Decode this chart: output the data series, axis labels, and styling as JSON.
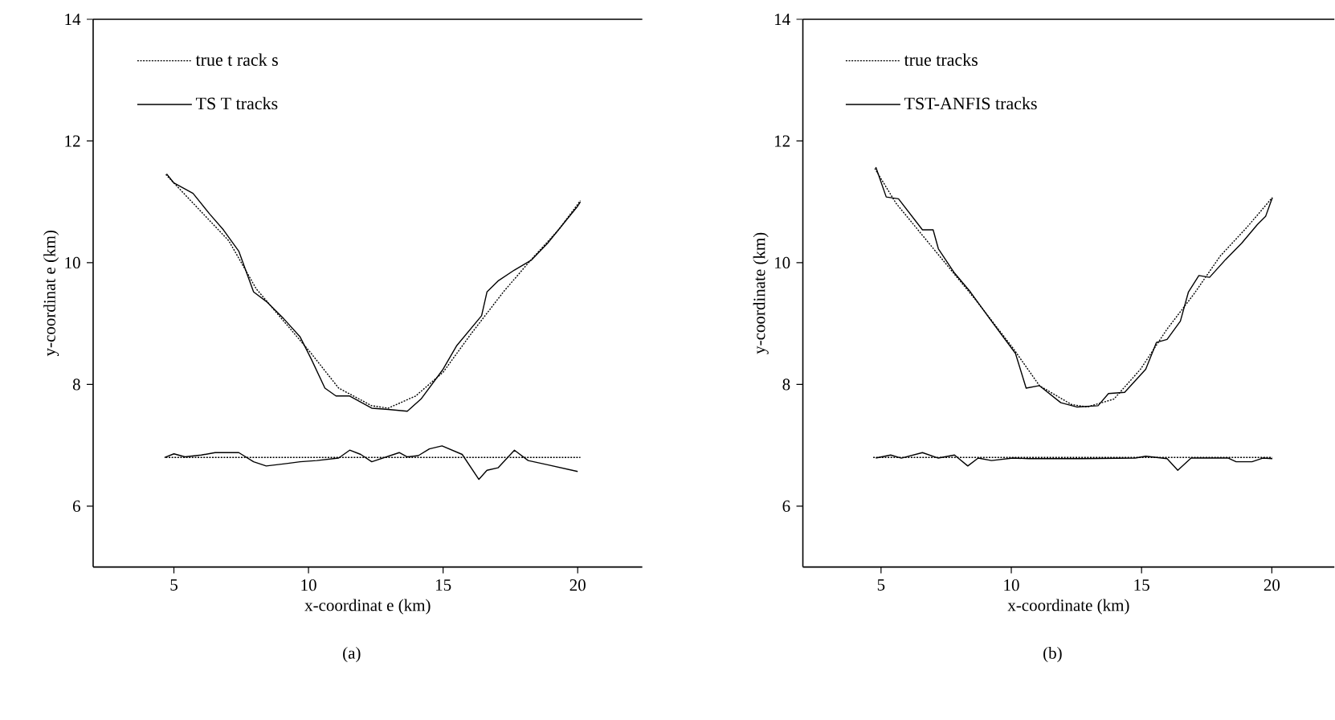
{
  "chart_data": [
    {
      "type": "line",
      "xlabel": "x-coordinat e (km)",
      "ylabel": "y-coordinat e (km)",
      "xlim": [
        2,
        22.4
      ],
      "ylim": [
        5,
        14
      ],
      "xticks": [
        5,
        10,
        15,
        20
      ],
      "yticks": [
        6,
        8,
        10,
        12,
        14
      ],
      "grid": false,
      "legend": "top left",
      "annotations": [
        "(a)"
      ],
      "series": [
        {
          "name": "true t rack s",
          "color": "#000000",
          "line_style": "dotted",
          "x": [
            4.7,
            7.04,
            8.06,
            9.08,
            10.1,
            11.12,
            12.35,
            12.96,
            13.98,
            15,
            16.02,
            17.24,
            18.27,
            19.29,
            20.1
          ],
          "values": [
            11.45,
            10.36,
            9.57,
            9.04,
            8.51,
            7.94,
            7.65,
            7.61,
            7.81,
            8.2,
            8.82,
            9.52,
            10.05,
            10.54,
            11.02
          ]
        },
        {
          "name": "TS T tracks",
          "color": "#000000",
          "line_style": "solid",
          "x": [
            4.73,
            5,
            5.71,
            6.33,
            6.84,
            7.41,
            7.96,
            8.47,
            9.08,
            9.69,
            10.1,
            10.61,
            11.02,
            11.53,
            12.35,
            12.96,
            13.67,
            14.18,
            15,
            15.51,
            16.43,
            16.63,
            17.04,
            17.65,
            18.27,
            18.88,
            20,
            20.1
          ],
          "values": [
            11.46,
            11.31,
            11.14,
            10.8,
            10.54,
            10.19,
            9.52,
            9.35,
            9.08,
            8.78,
            8.42,
            7.94,
            7.81,
            7.81,
            7.61,
            7.59,
            7.56,
            7.76,
            8.25,
            8.64,
            9.13,
            9.52,
            9.7,
            9.88,
            10.04,
            10.32,
            10.93,
            11.0
          ]
        },
        {
          "color": "#000000",
          "line_style": "dotted",
          "x": [
            4.7,
            20.1
          ],
          "values": [
            6.8,
            6.8
          ]
        },
        {
          "color": "#000000",
          "line_style": "solid",
          "x": [
            4.65,
            5,
            5.41,
            6.02,
            6.53,
            7.41,
            7.96,
            8.43,
            9.18,
            9.69,
            10.31,
            11.12,
            11.53,
            11.94,
            12.35,
            13.37,
            13.67,
            14.08,
            14.49,
            14.96,
            15.71,
            16.33,
            16.63,
            17.04,
            17.65,
            18.16,
            18.88,
            20
          ],
          "values": [
            6.8,
            6.86,
            6.81,
            6.84,
            6.88,
            6.88,
            6.73,
            6.66,
            6.7,
            6.73,
            6.75,
            6.79,
            6.92,
            6.85,
            6.73,
            6.88,
            6.81,
            6.83,
            6.94,
            6.99,
            6.85,
            6.44,
            6.59,
            6.63,
            6.92,
            6.75,
            6.68,
            6.57
          ]
        }
      ]
    },
    {
      "type": "line",
      "xlabel": "x-coordinate (km)",
      "ylabel": "y-coordinate (km)",
      "xlim": [
        2,
        22.4
      ],
      "ylim": [
        5,
        14
      ],
      "xticks": [
        5,
        10,
        15,
        20
      ],
      "yticks": [
        6,
        8,
        10,
        12,
        14
      ],
      "grid": false,
      "legend": "top left",
      "annotations": [
        "(b)"
      ],
      "series": [
        {
          "name": "true tracks",
          "color": "#000000",
          "line_style": "dotted",
          "x": [
            4.76,
            5.57,
            6.59,
            7.61,
            8.63,
            10.06,
            11.08,
            12.31,
            12.92,
            13.94,
            14.96,
            15.98,
            17,
            18.02,
            19.04,
            20.02
          ],
          "values": [
            11.55,
            10.98,
            10.45,
            9.92,
            9.39,
            8.6,
            7.98,
            7.67,
            7.63,
            7.76,
            8.25,
            8.91,
            9.48,
            10.11,
            10.58,
            11.07
          ]
        },
        {
          "name": "TST-ANFIS tracks",
          "color": "#000000",
          "line_style": "solid",
          "x": [
            4.8,
            5.2,
            5.67,
            6.59,
            7,
            7.2,
            7.82,
            8.43,
            9.24,
            10.16,
            10.57,
            11.08,
            11.9,
            12.51,
            13.33,
            13.73,
            14.35,
            15.16,
            15.57,
            15.98,
            16.49,
            16.8,
            17.2,
            17.61,
            18.22,
            18.84,
            19.45,
            19.76,
            20.02
          ],
          "values": [
            11.57,
            11.08,
            11.05,
            10.54,
            10.54,
            10.23,
            9.83,
            9.52,
            9.04,
            8.51,
            7.94,
            7.98,
            7.7,
            7.63,
            7.65,
            7.85,
            7.87,
            8.25,
            8.69,
            8.74,
            9.04,
            9.52,
            9.79,
            9.76,
            10.05,
            10.32,
            10.63,
            10.76,
            11.07
          ]
        },
        {
          "color": "#000000",
          "line_style": "dotted",
          "x": [
            4.7,
            20.02
          ],
          "values": [
            6.8,
            6.8
          ]
        },
        {
          "color": "#000000",
          "line_style": "solid",
          "x": [
            4.8,
            5.37,
            5.78,
            6.59,
            7.2,
            7.82,
            8.33,
            8.73,
            9.24,
            10.06,
            10.67,
            12.71,
            14.76,
            15.16,
            15.98,
            16.39,
            16.9,
            18.33,
            18.63,
            19.24,
            19.65,
            20.02
          ],
          "values": [
            6.79,
            6.84,
            6.79,
            6.88,
            6.79,
            6.84,
            6.66,
            6.79,
            6.75,
            6.79,
            6.78,
            6.78,
            6.79,
            6.82,
            6.78,
            6.59,
            6.79,
            6.79,
            6.73,
            6.73,
            6.79,
            6.78
          ]
        }
      ]
    }
  ]
}
